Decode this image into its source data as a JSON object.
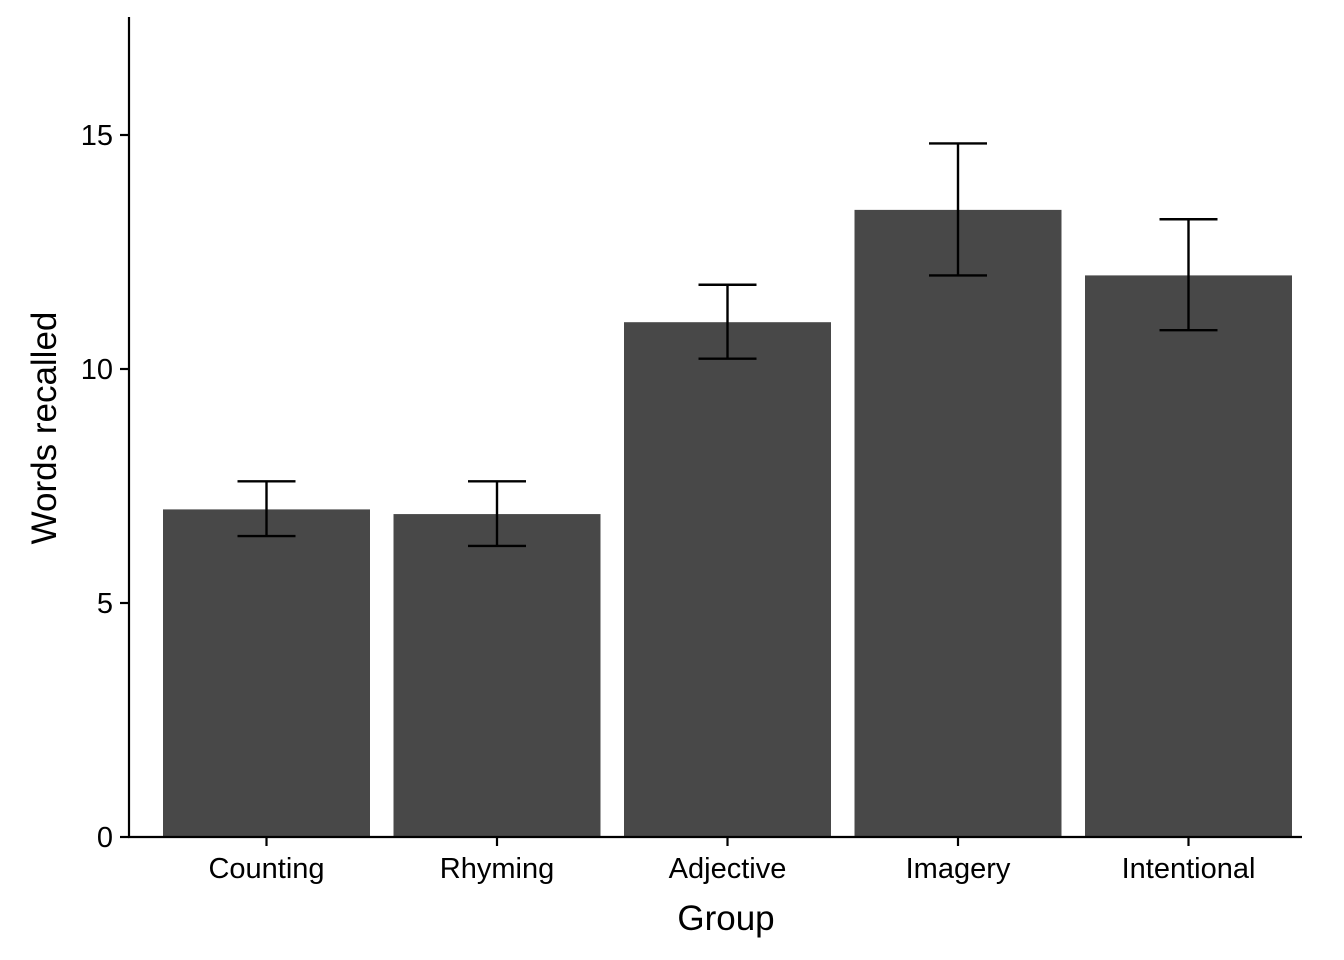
{
  "chart_data": {
    "type": "bar",
    "categories": [
      "Counting",
      "Rhyming",
      "Adjective",
      "Imagery",
      "Intentional"
    ],
    "values": [
      7.0,
      6.9,
      11.0,
      13.4,
      12.0
    ],
    "error_low": [
      6.43,
      6.22,
      10.22,
      12.0,
      10.83
    ],
    "error_high": [
      7.6,
      7.6,
      11.8,
      14.82,
      13.2
    ],
    "xlabel": "Group",
    "ylabel": "Words recalled",
    "yticks": [
      0,
      5,
      10,
      15
    ],
    "ylim": [
      0,
      17.5
    ],
    "grid": false,
    "legend": "none",
    "bar_color": "#484848"
  }
}
